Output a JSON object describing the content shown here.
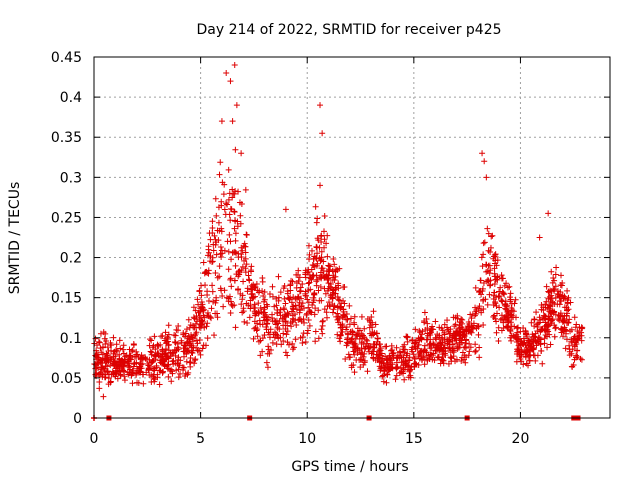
{
  "chart_data": {
    "type": "scatter",
    "title": "Day 214 of 2022, SRMTID for receiver p425",
    "xlabel": "GPS time / hours",
    "ylabel": "SRMTID / TECUs",
    "xlim": [
      0,
      24.2
    ],
    "ylim": [
      0,
      0.45
    ],
    "xticks": [
      0,
      5,
      10,
      15,
      20
    ],
    "xtick_labels": [
      "0",
      "5",
      "10",
      "15",
      "20"
    ],
    "yticks": [
      0,
      0.05,
      0.1,
      0.15,
      0.2,
      0.25,
      0.3,
      0.35,
      0.4,
      0.45
    ],
    "ytick_labels": [
      "0",
      "0.05",
      "0.1",
      "0.15",
      "0.2",
      "0.25",
      "0.3",
      "0.35",
      "0.4",
      "0.45"
    ],
    "grid": true,
    "marker": "+",
    "color": "#dd0000",
    "zero_markers_x": [
      0.7,
      7.3,
      12.9,
      17.5,
      22.5,
      22.7
    ],
    "profile": [
      [
        0.0,
        0.07,
        0.02
      ],
      [
        0.5,
        0.07,
        0.03
      ],
      [
        1.0,
        0.065,
        0.02
      ],
      [
        1.5,
        0.07,
        0.02
      ],
      [
        2.0,
        0.065,
        0.02
      ],
      [
        2.5,
        0.07,
        0.025
      ],
      [
        3.0,
        0.075,
        0.025
      ],
      [
        3.5,
        0.08,
        0.025
      ],
      [
        4.0,
        0.08,
        0.025
      ],
      [
        4.5,
        0.09,
        0.025
      ],
      [
        5.0,
        0.12,
        0.04
      ],
      [
        5.5,
        0.18,
        0.06
      ],
      [
        6.0,
        0.22,
        0.08
      ],
      [
        6.5,
        0.22,
        0.09
      ],
      [
        7.0,
        0.2,
        0.07
      ],
      [
        7.5,
        0.14,
        0.04
      ],
      [
        8.0,
        0.12,
        0.035
      ],
      [
        8.5,
        0.12,
        0.035
      ],
      [
        9.0,
        0.13,
        0.04
      ],
      [
        9.5,
        0.14,
        0.04
      ],
      [
        10.0,
        0.15,
        0.04
      ],
      [
        10.5,
        0.19,
        0.07
      ],
      [
        11.0,
        0.17,
        0.04
      ],
      [
        11.5,
        0.14,
        0.035
      ],
      [
        12.0,
        0.1,
        0.03
      ],
      [
        12.5,
        0.09,
        0.025
      ],
      [
        13.0,
        0.1,
        0.03
      ],
      [
        13.5,
        0.07,
        0.02
      ],
      [
        14.0,
        0.07,
        0.02
      ],
      [
        14.5,
        0.07,
        0.02
      ],
      [
        15.0,
        0.08,
        0.02
      ],
      [
        15.5,
        0.1,
        0.025
      ],
      [
        16.0,
        0.09,
        0.025
      ],
      [
        16.5,
        0.09,
        0.025
      ],
      [
        17.0,
        0.1,
        0.025
      ],
      [
        17.5,
        0.1,
        0.025
      ],
      [
        18.0,
        0.13,
        0.04
      ],
      [
        18.5,
        0.2,
        0.07
      ],
      [
        19.0,
        0.15,
        0.04
      ],
      [
        19.5,
        0.13,
        0.03
      ],
      [
        20.0,
        0.09,
        0.02
      ],
      [
        20.5,
        0.09,
        0.02
      ],
      [
        21.0,
        0.11,
        0.03
      ],
      [
        21.5,
        0.14,
        0.035
      ],
      [
        22.0,
        0.14,
        0.035
      ],
      [
        22.5,
        0.09,
        0.025
      ],
      [
        22.9,
        0.1,
        0.02
      ]
    ],
    "peaks": [
      [
        6.0,
        0.37
      ],
      [
        6.2,
        0.43
      ],
      [
        6.4,
        0.42
      ],
      [
        6.5,
        0.37
      ],
      [
        6.6,
        0.44
      ],
      [
        6.7,
        0.39
      ],
      [
        6.9,
        0.33
      ],
      [
        10.6,
        0.39
      ],
      [
        10.7,
        0.355
      ],
      [
        10.6,
        0.29
      ],
      [
        18.2,
        0.33
      ],
      [
        18.3,
        0.32
      ],
      [
        18.4,
        0.3
      ],
      [
        21.3,
        0.255
      ],
      [
        20.9,
        0.225
      ],
      [
        9.0,
        0.26
      ]
    ],
    "series": [
      {
        "name": "SRMTID",
        "sample_count": 2200,
        "x_range": [
          0.0,
          22.9
        ]
      }
    ]
  }
}
